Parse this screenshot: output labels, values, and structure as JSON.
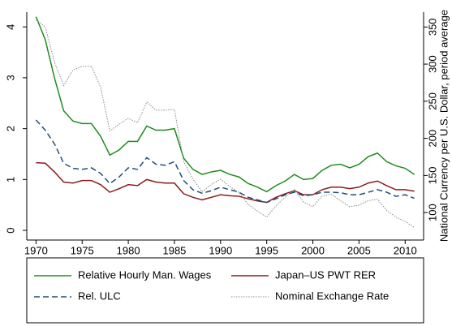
{
  "chart_data": {
    "type": "line",
    "y2label": "National Currency per U.S. Dollar, period average",
    "x": [
      1970,
      1971,
      1972,
      1973,
      1974,
      1975,
      1976,
      1977,
      1978,
      1979,
      1980,
      1981,
      1982,
      1983,
      1984,
      1985,
      1986,
      1987,
      1988,
      1989,
      1990,
      1991,
      1992,
      1993,
      1994,
      1995,
      1996,
      1997,
      1998,
      1999,
      2000,
      2001,
      2002,
      2003,
      2004,
      2005,
      2006,
      2007,
      2008,
      2009,
      2010,
      2011
    ],
    "xlim": [
      1969,
      2012
    ],
    "xticks": [
      1970,
      1975,
      1980,
      1985,
      1990,
      1995,
      2000,
      2005,
      2010
    ],
    "ylim": [
      -0.19,
      4.29
    ],
    "yticks": [
      0,
      1,
      2,
      3,
      4
    ],
    "y2lim": [
      63,
      370
    ],
    "y2ticks": [
      100,
      150,
      200,
      250,
      300,
      350
    ],
    "legend": "bottom",
    "series": [
      {
        "name": "Relative Hourly Man. Wages",
        "color": "#1e8c1e",
        "style": "solid",
        "values": [
          4.2,
          3.75,
          3.0,
          2.35,
          2.15,
          2.1,
          2.1,
          1.85,
          1.48,
          1.58,
          1.75,
          1.75,
          2.05,
          1.97,
          1.97,
          2.0,
          1.42,
          1.2,
          1.1,
          1.15,
          1.18,
          1.1,
          1.05,
          0.92,
          0.85,
          0.76,
          0.88,
          0.97,
          1.1,
          1.0,
          1.02,
          1.18,
          1.28,
          1.3,
          1.23,
          1.3,
          1.45,
          1.52,
          1.35,
          1.27,
          1.22,
          1.1
        ]
      },
      {
        "name": "Japan–US PWT RER",
        "color": "#8b1c1c",
        "style": "solid",
        "values": [
          1.33,
          1.32,
          1.15,
          0.95,
          0.93,
          0.98,
          0.98,
          0.9,
          0.75,
          0.82,
          0.9,
          0.88,
          1.0,
          0.95,
          0.93,
          0.93,
          0.72,
          0.65,
          0.6,
          0.65,
          0.7,
          0.68,
          0.67,
          0.62,
          0.58,
          0.55,
          0.65,
          0.72,
          0.78,
          0.7,
          0.7,
          0.8,
          0.85,
          0.85,
          0.82,
          0.85,
          0.93,
          0.97,
          0.88,
          0.8,
          0.8,
          0.77
        ]
      },
      {
        "name": "Rel. ULC",
        "color": "#1f4e79",
        "style": "dashed",
        "values": [
          2.17,
          1.97,
          1.7,
          1.32,
          1.22,
          1.2,
          1.23,
          1.12,
          0.92,
          1.05,
          1.23,
          1.2,
          1.43,
          1.3,
          1.28,
          1.35,
          0.98,
          0.8,
          0.73,
          0.78,
          0.85,
          0.8,
          0.75,
          0.65,
          0.6,
          0.55,
          0.62,
          0.7,
          0.75,
          0.68,
          0.7,
          0.75,
          0.75,
          0.74,
          0.7,
          0.7,
          0.75,
          0.8,
          0.75,
          0.67,
          0.7,
          0.63
        ]
      },
      {
        "name": "Nominal Exchange Rate",
        "color": "#8a8a8a",
        "style": "dotted",
        "axis": "y2",
        "values": [
          360,
          350,
          303,
          271,
          292,
          297,
          297,
          269,
          210,
          219,
          227,
          221,
          249,
          238,
          238,
          239,
          169,
          145,
          128,
          138,
          145,
          135,
          127,
          111,
          102,
          94,
          109,
          121,
          131,
          114,
          108,
          122,
          125,
          116,
          108,
          110,
          116,
          118,
          103,
          94,
          88,
          80
        ]
      }
    ]
  }
}
